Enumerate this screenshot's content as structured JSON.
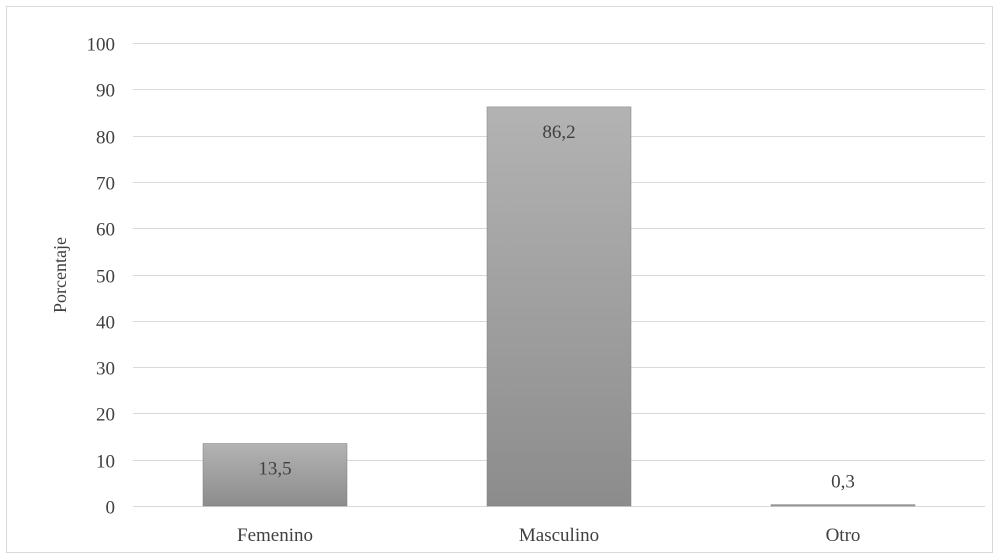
{
  "chart_data": {
    "type": "bar",
    "title": "",
    "xlabel": "",
    "ylabel": "Porcentaje",
    "categories": [
      "Femenino",
      "Masculino",
      "Otro"
    ],
    "values": [
      13.5,
      86.2,
      0.3
    ],
    "data_labels": [
      "13,5",
      "86,2",
      "0,3"
    ],
    "ylim": [
      0,
      100
    ],
    "yticks": [
      0,
      10,
      20,
      30,
      40,
      50,
      60,
      70,
      80,
      90,
      100
    ],
    "ytick_labels": [
      "0",
      "10",
      "20",
      "30",
      "40",
      "50",
      "60",
      "70",
      "80",
      "90",
      "100"
    ],
    "grid": true,
    "legend": "none",
    "colors": {
      "bar_top": "#b3b3b3",
      "bar_bottom": "#8c8c8c",
      "grid": "#d9d9d9",
      "text": "#404040"
    }
  }
}
